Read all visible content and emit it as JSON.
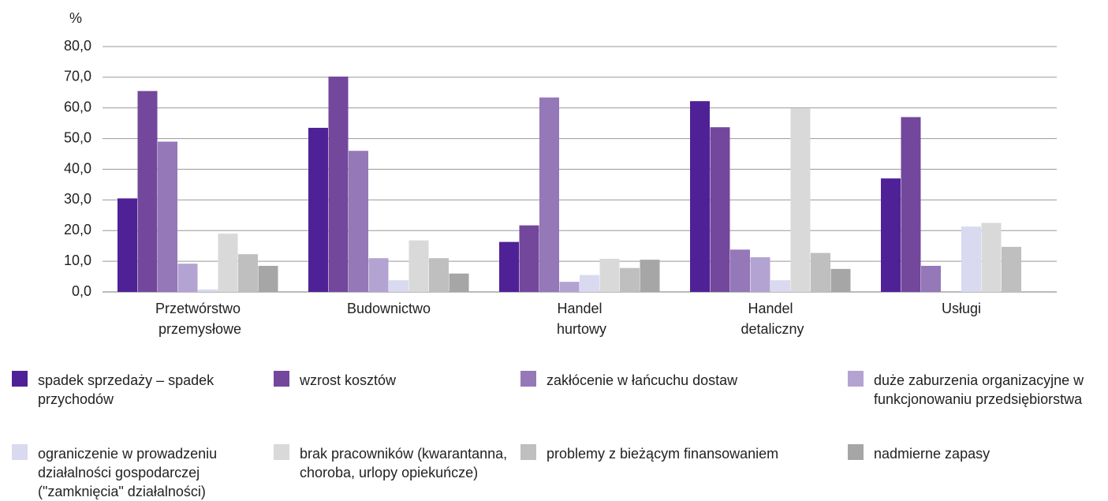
{
  "chart_data": {
    "type": "bar",
    "ylabel": "%",
    "categories": [
      "Przetwórstwo przemysłowe",
      "Budownictwo",
      "Handel hurtowy",
      "Handel detaliczny",
      "Usługi"
    ],
    "series": [
      {
        "name": "spadek sprzedaży – spadek przychodów",
        "color": "#4f2196",
        "values": [
          30.5,
          53.5,
          16.3,
          62.2,
          37.0
        ]
      },
      {
        "name": "wzrost kosztów",
        "color": "#73479c",
        "values": [
          65.5,
          70.2,
          21.7,
          53.7,
          57.0
        ]
      },
      {
        "name": "zakłócenie w łańcuchu dostaw",
        "color": "#9478b8",
        "values": [
          49.0,
          46.0,
          63.4,
          13.8,
          8.5
        ]
      },
      {
        "name": "duże zaburzenia organizacyjne w funkcjonowaniu przedsiębiorstwa",
        "color": "#b3a3d3",
        "values": [
          9.2,
          11.0,
          3.3,
          11.3,
          null
        ]
      },
      {
        "name": "ograniczenie w prowadzeniu działalności gospodarczej (\"zamknięcia\" działalności)",
        "color": "#d9d9f0",
        "values": [
          0.8,
          3.8,
          5.5,
          3.8,
          21.3
        ]
      },
      {
        "name": "brak pracowników (kwarantanna, choroba, urlopy opiekuńcze)",
        "color": "#d9d9d9",
        "values": [
          19.0,
          16.8,
          10.8,
          59.8,
          22.5
        ]
      },
      {
        "name": "problemy z bieżącym finansowaniem",
        "color": "#bfbfbf",
        "values": [
          12.3,
          11.0,
          7.8,
          12.7,
          14.7
        ]
      },
      {
        "name": "nadmierne zapasy",
        "color": "#a6a6a6",
        "values": [
          8.5,
          6.0,
          10.5,
          7.5,
          null
        ]
      }
    ],
    "ylim": [
      0,
      80
    ],
    "yticks": [
      {
        "value": 0,
        "label": "0,0"
      },
      {
        "value": 10,
        "label": "10,0"
      },
      {
        "value": 20,
        "label": "20,0"
      },
      {
        "value": 30,
        "label": "30,0"
      },
      {
        "value": 40,
        "label": "40,0"
      },
      {
        "value": 50,
        "label": "50,0"
      },
      {
        "value": 60,
        "label": "60,0"
      },
      {
        "value": 70,
        "label": "70,0"
      },
      {
        "value": 80,
        "label": "80,0"
      }
    ],
    "grid": true
  }
}
